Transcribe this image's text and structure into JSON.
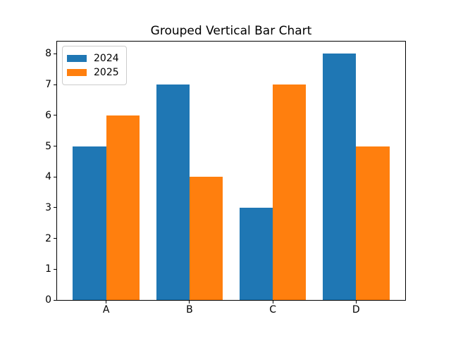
{
  "chart_data": {
    "type": "bar",
    "title": "Grouped Vertical Bar Chart",
    "categories": [
      "A",
      "B",
      "C",
      "D"
    ],
    "series": [
      {
        "name": "2024",
        "color": "#1f77b4",
        "values": [
          5,
          7,
          3,
          8
        ]
      },
      {
        "name": "2025",
        "color": "#ff7f0e",
        "values": [
          6,
          4,
          7,
          5
        ]
      }
    ],
    "xlabel": "",
    "ylabel": "",
    "ylim": [
      0,
      8.4
    ],
    "yticks": [
      0,
      1,
      2,
      3,
      4,
      5,
      6,
      7,
      8
    ],
    "bar_width": 0.4,
    "legend_position": "upper left",
    "grid": false,
    "background_color": "#ffffff",
    "axes_edge_color": "#000000",
    "legend_edge_color": "#cccccc"
  }
}
